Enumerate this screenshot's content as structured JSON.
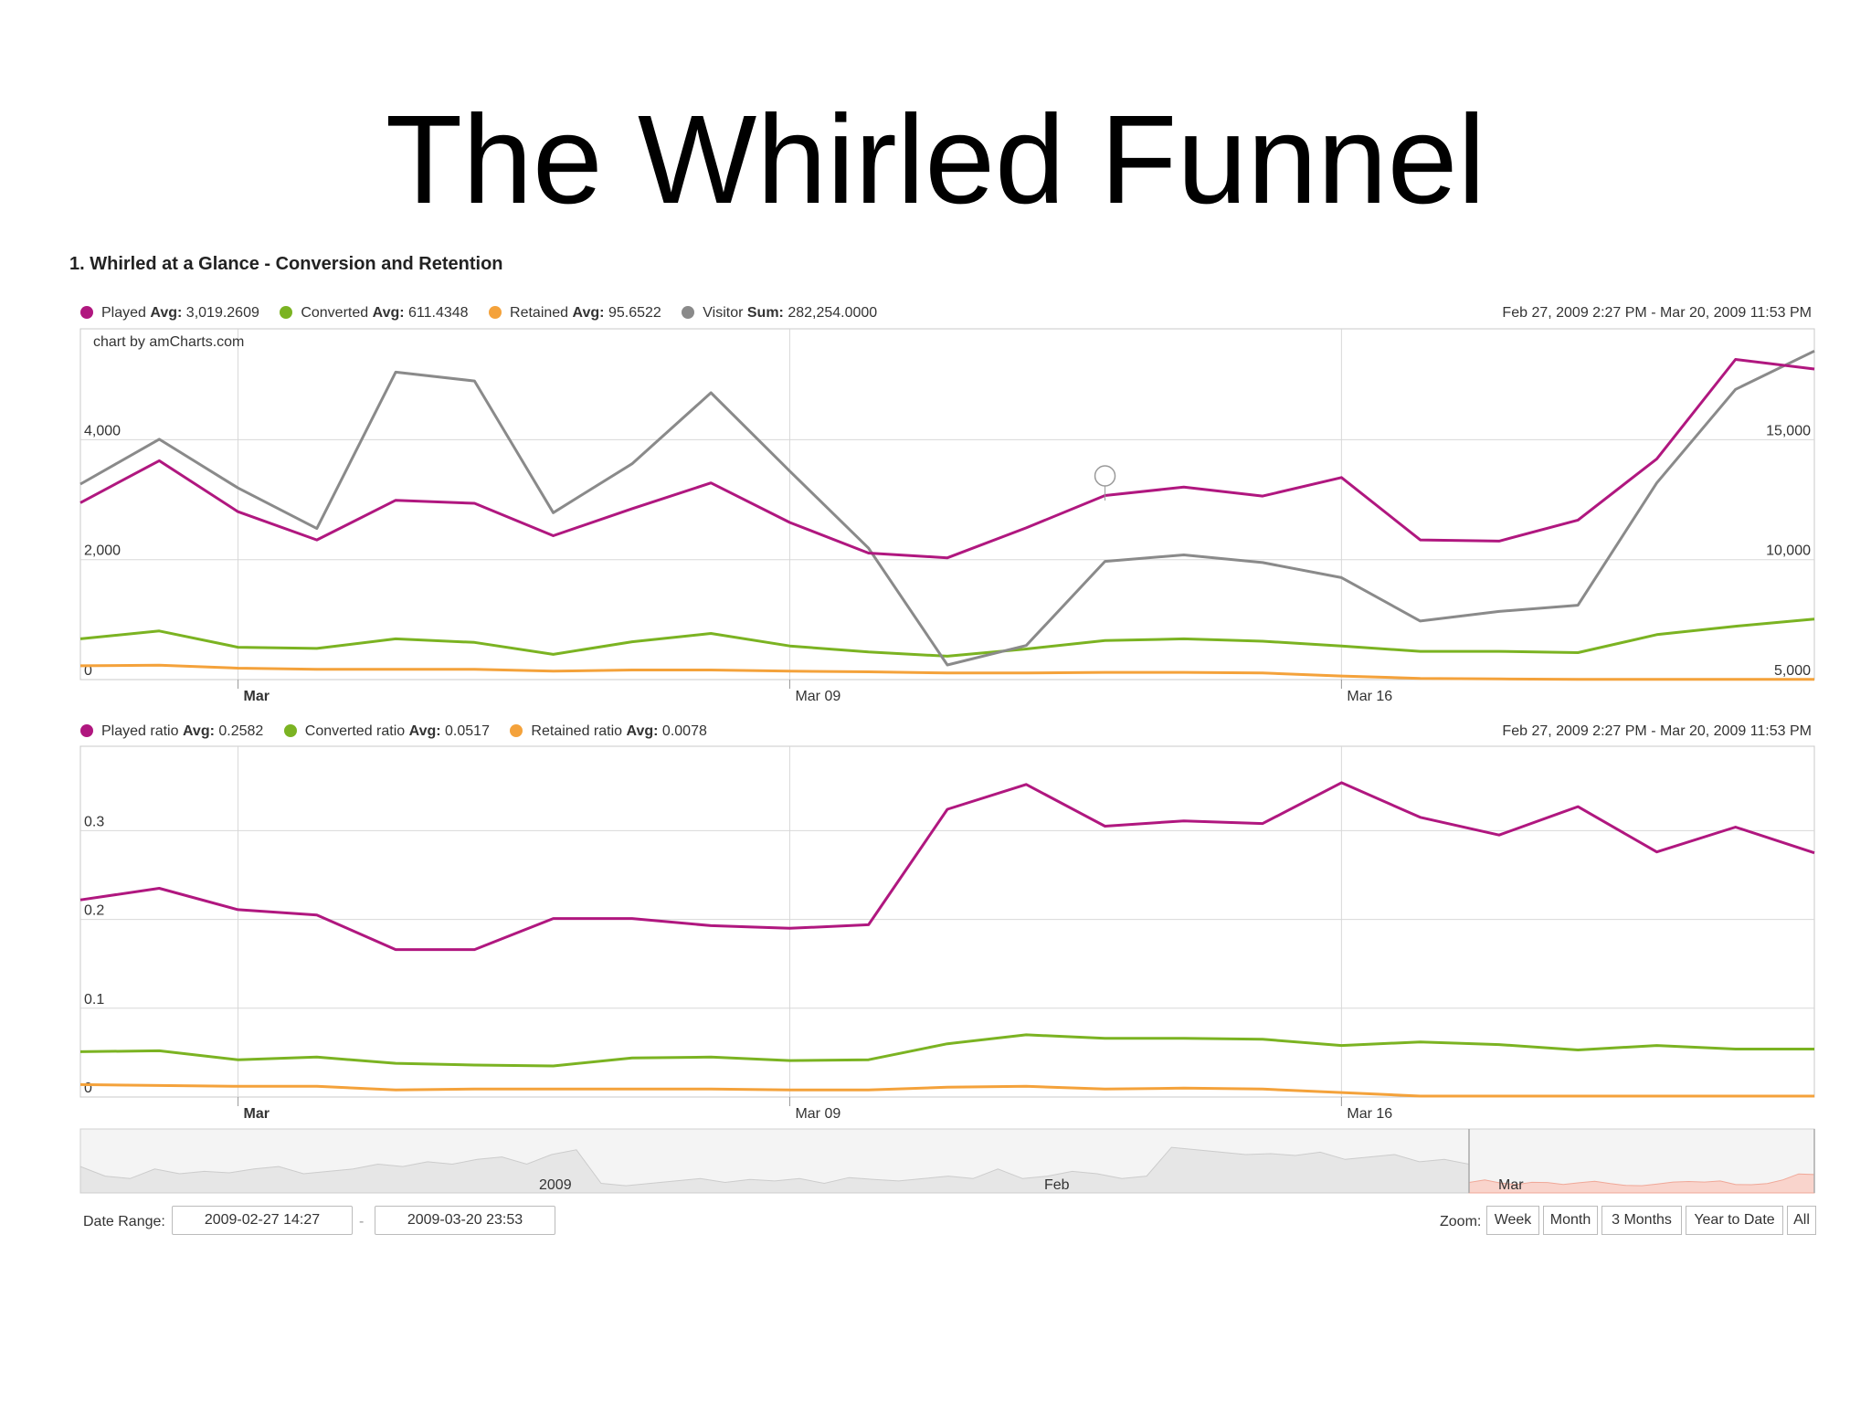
{
  "slide": {
    "title": "The Whirled Funnel"
  },
  "section": {
    "title": "1. Whirled at a Glance - Conversion and Retention"
  },
  "colors": {
    "played": "#b0177f",
    "converted": "#7bb322",
    "retained": "#f4a23b",
    "visitor": "#8a8a8a",
    "grid": "#d8d8d8",
    "scroller_selected": "#f9d4cc",
    "scroller_bg": "#e6e6e6"
  },
  "chart1": {
    "legend": [
      {
        "color": "#b0177f",
        "name": "Played",
        "stat": "Avg:",
        "value": "3,019.2609"
      },
      {
        "color": "#7bb322",
        "name": "Converted",
        "stat": "Avg:",
        "value": "611.4348"
      },
      {
        "color": "#f4a23b",
        "name": "Retained",
        "stat": "Avg:",
        "value": "95.6522"
      },
      {
        "color": "#8a8a8a",
        "name": "Visitor",
        "stat": "Sum:",
        "value": "282,254.0000"
      }
    ],
    "range_text": "Feb 27, 2009 2:27 PM - Mar 20, 2009 11:53 PM",
    "credit": "chart by amCharts.com"
  },
  "chart2": {
    "legend": [
      {
        "color": "#b0177f",
        "name": "Played ratio",
        "stat": "Avg:",
        "value": "0.2582"
      },
      {
        "color": "#7bb322",
        "name": "Converted ratio",
        "stat": "Avg:",
        "value": "0.0517"
      },
      {
        "color": "#f4a23b",
        "name": "Retained ratio",
        "stat": "Avg:",
        "value": "0.0078"
      }
    ],
    "range_text": "Feb 27, 2009 2:27 PM - Mar 20, 2009 11:53 PM"
  },
  "controls": {
    "date_range_label": "Date Range:",
    "start": "2009-02-27 14:27",
    "dash": "-",
    "end": "2009-03-20 23:53",
    "zoom_label": "Zoom:",
    "zoom_buttons": [
      "Week",
      "Month",
      "3 Months",
      "Year to Date",
      "All"
    ]
  },
  "scroller": {
    "labels": [
      "2009",
      "Feb",
      "Mar"
    ]
  },
  "chart_data": [
    {
      "type": "line",
      "x": [
        "2009-02-27",
        "2009-02-28",
        "2009-03-01",
        "2009-03-02",
        "2009-03-03",
        "2009-03-04",
        "2009-03-05",
        "2009-03-06",
        "2009-03-07",
        "2009-03-08",
        "2009-03-09",
        "2009-03-10",
        "2009-03-11",
        "2009-03-12",
        "2009-03-13",
        "2009-03-14",
        "2009-03-15",
        "2009-03-16",
        "2009-03-17",
        "2009-03-18",
        "2009-03-19",
        "2009-03-20",
        "2009-03-21"
      ],
      "x_tick_labels": [
        "Mar",
        "Mar 09",
        "Mar 16"
      ],
      "y_left": {
        "ticks": [
          0,
          2000,
          4000
        ],
        "tick_labels": [
          "0",
          "2,000",
          "4,000"
        ],
        "range": [
          0,
          5850
        ]
      },
      "y_right": {
        "ticks": [
          5000,
          10000,
          15000
        ],
        "tick_labels": [
          "5,000",
          "10,000",
          "15,000"
        ],
        "range": [
          5000,
          19625
        ]
      },
      "grid": true,
      "series": [
        {
          "name": "Played",
          "axis": "left",
          "color": "#b0177f",
          "values": [
            2950,
            3650,
            2800,
            2330,
            2990,
            2940,
            2400,
            2850,
            3280,
            2620,
            2110,
            2030,
            2530,
            3070,
            3210,
            3060,
            3370,
            2330,
            2310,
            2660,
            3680,
            5340,
            5180
          ]
        },
        {
          "name": "Converted",
          "axis": "left",
          "color": "#7bb322",
          "values": [
            680,
            810,
            540,
            520,
            680,
            620,
            420,
            630,
            770,
            560,
            460,
            390,
            510,
            650,
            680,
            640,
            560,
            470,
            470,
            450,
            750,
            890,
            1010
          ]
        },
        {
          "name": "Retained",
          "axis": "left",
          "color": "#f4a23b",
          "values": [
            230,
            240,
            190,
            170,
            170,
            170,
            140,
            160,
            160,
            140,
            130,
            110,
            110,
            120,
            120,
            110,
            60,
            20,
            10,
            5,
            5,
            5,
            5
          ]
        },
        {
          "name": "Visitor",
          "axis": "right",
          "color": "#8a8a8a",
          "values": [
            13150,
            15020,
            12990,
            11300,
            17820,
            17450,
            11960,
            14000,
            16960,
            13690,
            10480,
            5610,
            6420,
            9930,
            10200,
            9880,
            9250,
            7440,
            7840,
            8100,
            13200,
            17100,
            18700
          ]
        }
      ]
    },
    {
      "type": "line",
      "x": [
        "2009-02-27",
        "2009-02-28",
        "2009-03-01",
        "2009-03-02",
        "2009-03-03",
        "2009-03-04",
        "2009-03-05",
        "2009-03-06",
        "2009-03-07",
        "2009-03-08",
        "2009-03-09",
        "2009-03-10",
        "2009-03-11",
        "2009-03-12",
        "2009-03-13",
        "2009-03-14",
        "2009-03-15",
        "2009-03-16",
        "2009-03-17",
        "2009-03-18",
        "2009-03-19",
        "2009-03-20",
        "2009-03-21"
      ],
      "x_tick_labels": [
        "Mar",
        "Mar 09",
        "Mar 16"
      ],
      "y": {
        "ticks": [
          0,
          0.1,
          0.2,
          0.3
        ],
        "tick_labels": [
          "0",
          "0.1",
          "0.2",
          "0.3"
        ],
        "range": [
          0,
          0.395
        ]
      },
      "grid": true,
      "series": [
        {
          "name": "Played ratio",
          "color": "#b0177f",
          "values": [
            0.222,
            0.235,
            0.211,
            0.205,
            0.166,
            0.166,
            0.201,
            0.201,
            0.193,
            0.19,
            0.194,
            0.324,
            0.352,
            0.305,
            0.311,
            0.308,
            0.354,
            0.315,
            0.295,
            0.327,
            0.276,
            0.304,
            0.275
          ]
        },
        {
          "name": "Converted ratio",
          "color": "#7bb322",
          "values": [
            0.051,
            0.052,
            0.042,
            0.045,
            0.038,
            0.036,
            0.035,
            0.044,
            0.045,
            0.041,
            0.042,
            0.06,
            0.07,
            0.066,
            0.066,
            0.065,
            0.058,
            0.062,
            0.059,
            0.053,
            0.058,
            0.054,
            0.054
          ]
        },
        {
          "name": "Retained ratio",
          "color": "#f4a23b",
          "values": [
            0.014,
            0.013,
            0.012,
            0.012,
            0.008,
            0.009,
            0.009,
            0.009,
            0.009,
            0.008,
            0.008,
            0.011,
            0.012,
            0.009,
            0.01,
            0.009,
            0.005,
            0.001,
            0.001,
            0.001,
            0.001,
            0.001,
            0.001
          ]
        }
      ]
    }
  ]
}
